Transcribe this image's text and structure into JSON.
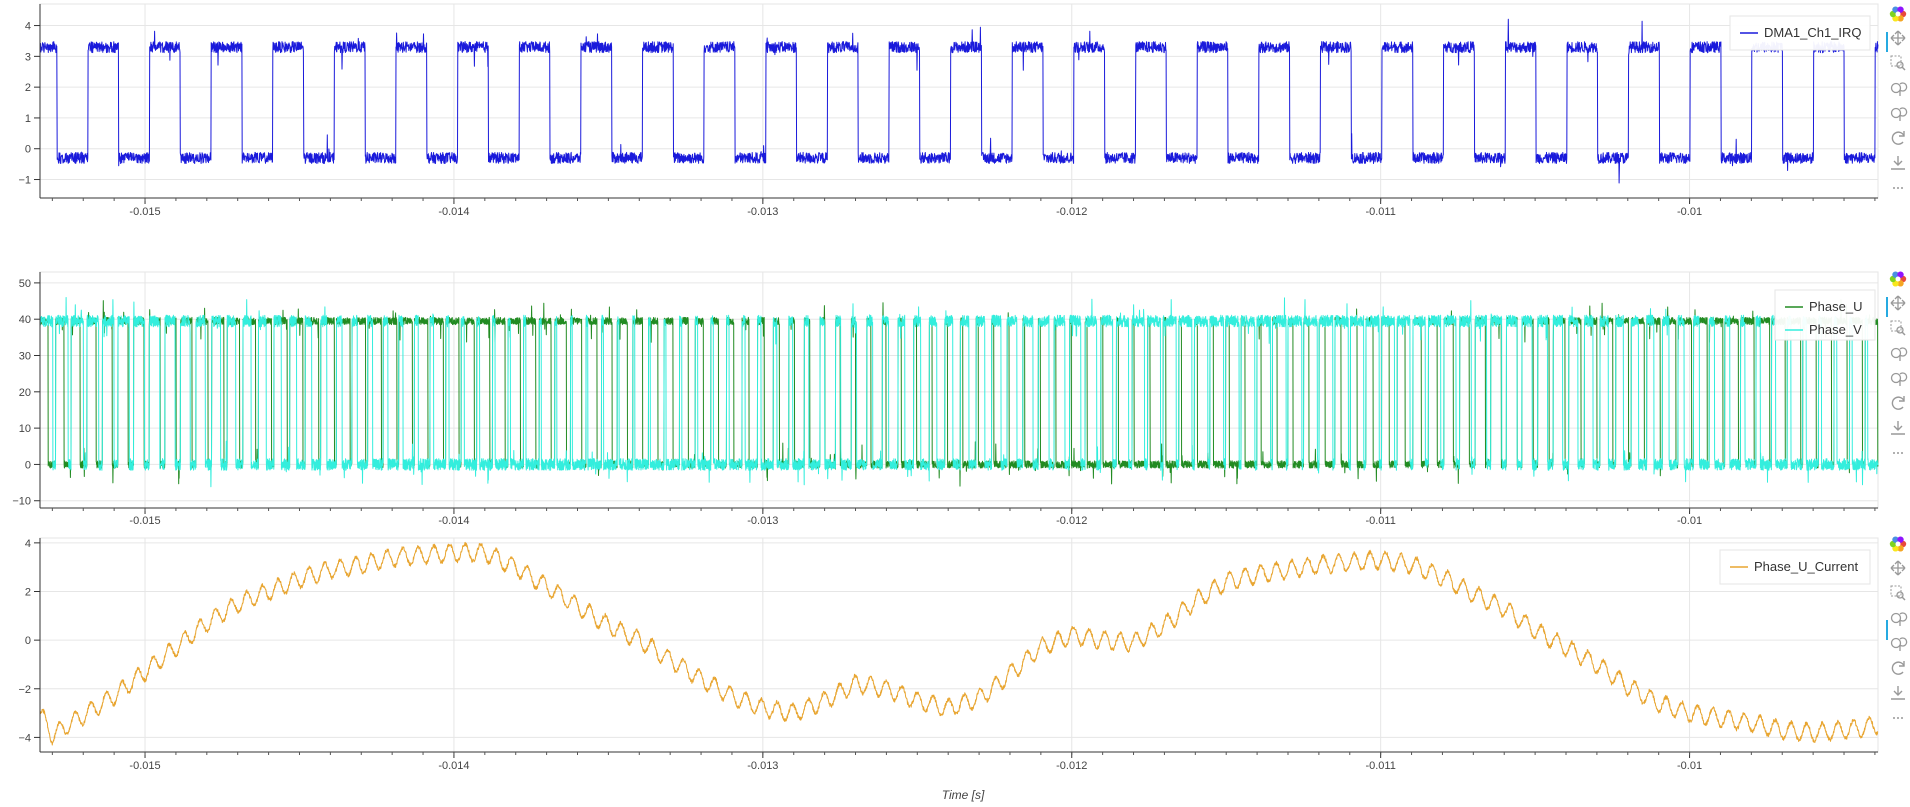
{
  "x_axis_title": "Time [s]",
  "toolbar_icons": [
    "bokeh-logo-icon",
    "pan-icon",
    "box-zoom-icon",
    "wheel-zoom-x-icon",
    "wheel-zoom-y-icon",
    "reset-icon",
    "save-icon",
    "more-icon"
  ],
  "chart_data": [
    {
      "type": "line",
      "xlim": [
        -0.01534,
        -0.00939
      ],
      "ylim": [
        -1.6,
        4.7
      ],
      "x_ticks": [
        -0.015,
        -0.014,
        -0.013,
        -0.012,
        -0.011,
        -0.01
      ],
      "x_tick_labels": [
        "-0.015",
        "-0.014",
        "-0.013",
        "-0.012",
        "-0.011",
        "-0.01"
      ],
      "y_ticks": [
        -1,
        0,
        1,
        2,
        3,
        4
      ],
      "y_tick_labels": [
        "−1",
        "0",
        "1",
        "2",
        "3",
        "4"
      ],
      "grid": true,
      "legend_position": "top-right",
      "series": [
        {
          "name": "DMA1_Ch1_IRQ",
          "color": "#1a1adb",
          "kind": "square",
          "high": 3.3,
          "low": -0.3,
          "period": 0.0001995,
          "duty": 0.5,
          "phase": 4.47e-05,
          "noise": 0.18
        }
      ]
    },
    {
      "type": "line",
      "xlim": [
        -0.01534,
        -0.00939
      ],
      "ylim": [
        -12,
        53
      ],
      "x_ticks": [
        -0.015,
        -0.014,
        -0.013,
        -0.012,
        -0.011,
        -0.01
      ],
      "x_tick_labels": [
        "-0.015",
        "-0.014",
        "-0.013",
        "-0.012",
        "-0.011",
        "-0.01"
      ],
      "y_ticks": [
        -10,
        0,
        10,
        20,
        30,
        40,
        50
      ],
      "y_tick_labels": [
        "−10",
        "0",
        "10",
        "20",
        "30",
        "40",
        "50"
      ],
      "grid": true,
      "legend_position": "top-right",
      "series": [
        {
          "name": "Phase_U",
          "color": "#228b22",
          "kind": "pwm",
          "high": 39.5,
          "low": 0,
          "period": 5.05e-05,
          "noise": 1.0
        },
        {
          "name": "Phase_V",
          "color": "#33eedd",
          "kind": "pwm",
          "high": 39.5,
          "low": 0,
          "period": 5.05e-05,
          "noise": 1.6
        }
      ]
    },
    {
      "type": "line",
      "xlim": [
        -0.01534,
        -0.00939
      ],
      "ylim": [
        -4.6,
        4.2
      ],
      "x_ticks": [
        -0.015,
        -0.014,
        -0.013,
        -0.012,
        -0.011,
        -0.01
      ],
      "x_tick_labels": [
        "-0.015",
        "-0.014",
        "-0.013",
        "-0.012",
        "-0.011",
        "-0.01"
      ],
      "y_ticks": [
        -4,
        -2,
        0,
        2,
        4
      ],
      "y_tick_labels": [
        "−4",
        "−2",
        "0",
        "2",
        "4"
      ],
      "grid": true,
      "legend_position": "top-right",
      "series": [
        {
          "name": "Phase_U_Current",
          "color": "#e8a530",
          "kind": "envelope",
          "points": [
            [
              -0.01534,
              -3.0
            ],
            [
              -0.0153,
              -3.9
            ],
            [
              -0.0152,
              -3.1
            ],
            [
              -0.0151,
              -2.3
            ],
            [
              -0.015,
              -1.3
            ],
            [
              -0.0149,
              -0.3
            ],
            [
              -0.0148,
              0.7
            ],
            [
              -0.0147,
              1.5
            ],
            [
              -0.0146,
              2.0
            ],
            [
              -0.0145,
              2.5
            ],
            [
              -0.0144,
              2.9
            ],
            [
              -0.0143,
              3.1
            ],
            [
              -0.0142,
              3.4
            ],
            [
              -0.0141,
              3.5
            ],
            [
              -0.014,
              3.6
            ],
            [
              -0.0139,
              3.6
            ],
            [
              -0.0138,
              3.0
            ],
            [
              -0.0137,
              2.2
            ],
            [
              -0.0136,
              1.4
            ],
            [
              -0.0135,
              0.6
            ],
            [
              -0.0134,
              0.0
            ],
            [
              -0.0133,
              -0.8
            ],
            [
              -0.0132,
              -1.6
            ],
            [
              -0.0131,
              -2.3
            ],
            [
              -0.013,
              -2.8
            ],
            [
              -0.0129,
              -3.0
            ],
            [
              -0.0128,
              -2.5
            ],
            [
              -0.0127,
              -1.8
            ],
            [
              -0.0126,
              -2.0
            ],
            [
              -0.0125,
              -2.5
            ],
            [
              -0.0124,
              -2.8
            ],
            [
              -0.0123,
              -2.4
            ],
            [
              -0.0122,
              -1.4
            ],
            [
              -0.0121,
              -0.3
            ],
            [
              -0.012,
              0.2
            ],
            [
              -0.0119,
              0.0
            ],
            [
              -0.0118,
              -0.1
            ],
            [
              -0.0117,
              0.6
            ],
            [
              -0.0116,
              1.6
            ],
            [
              -0.0115,
              2.4
            ],
            [
              -0.0114,
              2.7
            ],
            [
              -0.0113,
              2.9
            ],
            [
              -0.0112,
              3.1
            ],
            [
              -0.0111,
              3.2
            ],
            [
              -0.011,
              3.3
            ],
            [
              -0.0109,
              3.1
            ],
            [
              -0.0108,
              2.6
            ],
            [
              -0.0107,
              1.9
            ],
            [
              -0.0106,
              1.3
            ],
            [
              -0.0105,
              0.4
            ],
            [
              -0.0104,
              -0.3
            ],
            [
              -0.0103,
              -1.0
            ],
            [
              -0.0102,
              -1.9
            ],
            [
              -0.0101,
              -2.6
            ],
            [
              -0.01,
              -3.0
            ],
            [
              -0.0099,
              -3.2
            ],
            [
              -0.0098,
              -3.4
            ],
            [
              -0.0097,
              -3.7
            ],
            [
              -0.0096,
              -3.8
            ],
            [
              -0.0095,
              -3.7
            ],
            [
              -0.00939,
              -3.5
            ]
          ],
          "ripple": 0.35,
          "ripple_period": 5.05e-05
        }
      ]
    }
  ]
}
